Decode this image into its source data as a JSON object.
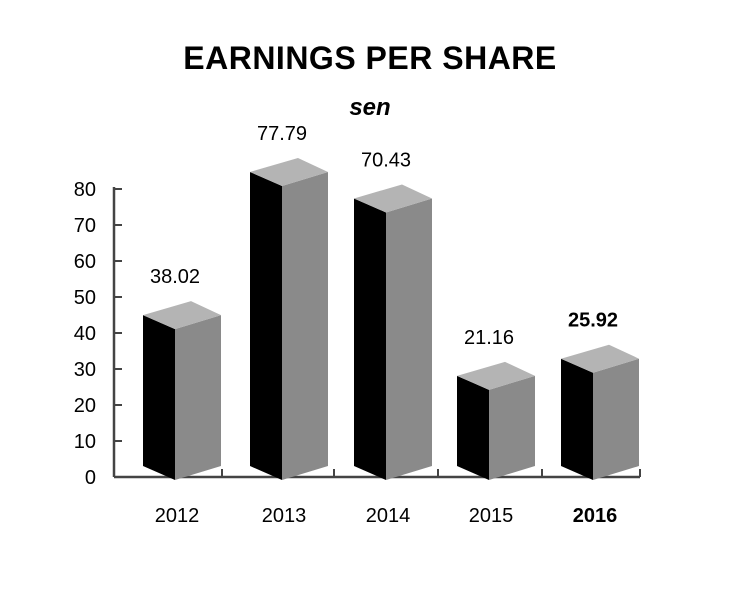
{
  "chart_data": {
    "type": "bar",
    "title": "EARNINGS PER SHARE",
    "subtitle": "sen",
    "xlabel": "",
    "ylabel": "",
    "categories": [
      "2012",
      "2013",
      "2014",
      "2015",
      "2016"
    ],
    "values": [
      38.02,
      77.79,
      70.43,
      21.16,
      25.92
    ],
    "value_labels": [
      "38.02",
      "77.79",
      "70.43",
      "21.16",
      "25.92"
    ],
    "highlight_category": "2016",
    "ylim": [
      0,
      80
    ],
    "yticks": [
      0,
      10,
      20,
      30,
      40,
      50,
      60,
      70,
      80
    ],
    "grid": false,
    "legend": "none",
    "style": "3d-bar",
    "colors": {
      "front": "#000000",
      "side": "#8a8a8a",
      "top": "#b4b4b4",
      "axis": "#444444"
    }
  }
}
